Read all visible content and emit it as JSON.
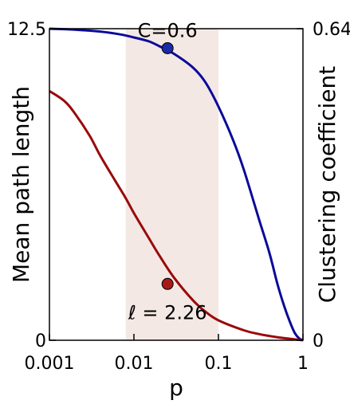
{
  "chart_data": {
    "type": "line",
    "xlabel": "p",
    "ylabel": "Mean path length",
    "y2label": "Clustering coefficient",
    "xscale": "log",
    "xlim": [
      0.001,
      1
    ],
    "ylim": [
      0,
      12.5
    ],
    "y2lim": [
      0,
      0.64
    ],
    "x_ticks": [
      0.001,
      0.01,
      0.1,
      1
    ],
    "x_tick_labels": [
      "0.001",
      "0.01",
      "0.1",
      "1"
    ],
    "y_tick_labels": [
      "0",
      "12.5"
    ],
    "y2_tick_labels": [
      "0",
      "0.64"
    ],
    "highlight_band": {
      "x_range": [
        0.008,
        0.1
      ],
      "color": "#f3e8e4"
    },
    "series": [
      {
        "axis": "right",
        "color": "#0a0a9a",
        "x": [
          0.001,
          0.002,
          0.004,
          0.007,
          0.01,
          0.015,
          0.02,
          0.03,
          0.05,
          0.07,
          0.1,
          0.15,
          0.2,
          0.3,
          0.4,
          0.5,
          0.6,
          0.7,
          0.8,
          0.9,
          1.0
        ],
        "y": [
          0.64,
          0.638,
          0.634,
          0.628,
          0.622,
          0.614,
          0.604,
          0.588,
          0.56,
          0.53,
          0.48,
          0.41,
          0.35,
          0.25,
          0.18,
          0.115,
          0.07,
          0.038,
          0.015,
          0.004,
          0.0
        ]
      },
      {
        "axis": "left",
        "color": "#9a0a0a",
        "x": [
          0.001,
          0.0015,
          0.002,
          0.003,
          0.004,
          0.006,
          0.008,
          0.01,
          0.015,
          0.02,
          0.03,
          0.05,
          0.07,
          0.1,
          0.2,
          0.3,
          0.5,
          0.7,
          1.0
        ],
        "y": [
          10.0,
          9.6,
          9.1,
          8.2,
          7.4,
          6.4,
          5.7,
          5.1,
          4.1,
          3.4,
          2.5,
          1.6,
          1.15,
          0.8,
          0.4,
          0.25,
          0.12,
          0.06,
          0.0
        ]
      }
    ],
    "markers": [
      {
        "axis": "right",
        "x": 0.025,
        "y": 0.6,
        "color": "#1a2aa8",
        "label": "C=0.6"
      },
      {
        "axis": "left",
        "x": 0.025,
        "y": 2.26,
        "color": "#a81a1a",
        "label": "ℓ = 2.26"
      }
    ]
  }
}
